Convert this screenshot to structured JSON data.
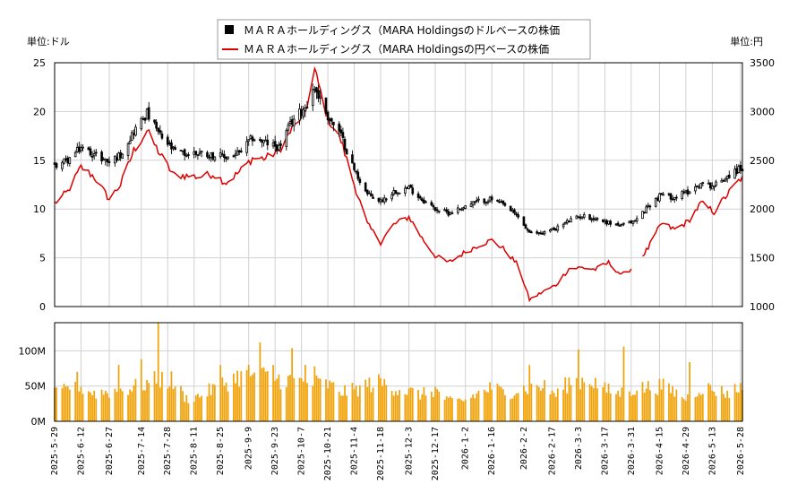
{
  "chart_data": {
    "type": "candlestick+line+bar",
    "title": "",
    "legend": {
      "placement": "top-center",
      "entries": [
        {
          "label": "ＭＡＲＡホールディングス（MARA Holdingsのドルベースの株価",
          "color": "#000000",
          "marker": "square"
        },
        {
          "label": "ＭＡＲＡホールディングス（MARA Holdingsの円ベースの株価",
          "color": "#dd0000",
          "marker": "line"
        }
      ]
    },
    "left_axis": {
      "title": "単位:ドル",
      "ylim": [
        0,
        25
      ],
      "ticks": [
        0,
        5,
        10,
        15,
        20,
        25
      ]
    },
    "right_axis": {
      "title": "単位:円",
      "ylim": [
        1000,
        3500
      ],
      "ticks": [
        1000,
        1500,
        2000,
        2500,
        3000,
        3500
      ]
    },
    "volume_axis": {
      "ylim": [
        0,
        140000000
      ],
      "ticks": [
        0,
        50000000,
        100000000
      ],
      "tick_labels": [
        "0M",
        "50M",
        "100M"
      ]
    },
    "x_axis": {
      "start": "2025-05-29",
      "end": "2026-05-29",
      "tick_labels": [
        "2025-5-29",
        "2025-6-12",
        "2025-6-27",
        "2025-7-14",
        "2025-7-28",
        "2025-8-11",
        "2025-8-25",
        "2025-9-9",
        "2025-9-23",
        "2025-10-7",
        "2025-10-21",
        "2025-11-4",
        "2025-11-18",
        "2025-12-3",
        "2025-12-17",
        "2026-1-2",
        "2026-1-16",
        "2026-2-2",
        "2026-2-17",
        "2026-3-3",
        "2026-3-17",
        "2026-3-31",
        "2026-4-15",
        "2026-4-29",
        "2026-5-13",
        "2026-5-28"
      ]
    },
    "grid": true,
    "colors": {
      "candle": "#000000",
      "yen_line": "#dd0000",
      "volume": "#f0a30a",
      "grid": "#d0d0d0"
    },
    "usd_price_series": [
      [
        "2025-05-29",
        14.5
      ],
      [
        "2025-06-05",
        15.0
      ],
      [
        "2025-06-12",
        16.3
      ],
      [
        "2025-06-19",
        15.6
      ],
      [
        "2025-06-27",
        14.8
      ],
      [
        "2025-07-03",
        15.6
      ],
      [
        "2025-07-10",
        18.0
      ],
      [
        "2025-07-17",
        19.8
      ],
      [
        "2025-07-24",
        17.5
      ],
      [
        "2025-07-31",
        16.0
      ],
      [
        "2025-08-07",
        15.6
      ],
      [
        "2025-08-14",
        15.8
      ],
      [
        "2025-08-21",
        15.5
      ],
      [
        "2025-08-28",
        15.3
      ],
      [
        "2025-09-04",
        15.7
      ],
      [
        "2025-09-11",
        17.3
      ],
      [
        "2025-09-18",
        16.8
      ],
      [
        "2025-09-25",
        16.3
      ],
      [
        "2025-10-02",
        19.0
      ],
      [
        "2025-10-09",
        20.5
      ],
      [
        "2025-10-14",
        22.5
      ],
      [
        "2025-10-21",
        19.5
      ],
      [
        "2025-10-28",
        17.5
      ],
      [
        "2025-11-04",
        14.0
      ],
      [
        "2025-11-11",
        11.5
      ],
      [
        "2025-11-18",
        10.8
      ],
      [
        "2025-11-25",
        11.8
      ],
      [
        "2025-12-03",
        12.2
      ],
      [
        "2025-12-10",
        11.0
      ],
      [
        "2025-12-17",
        10.0
      ],
      [
        "2025-12-24",
        9.6
      ],
      [
        "2026-01-02",
        10.3
      ],
      [
        "2026-01-09",
        10.8
      ],
      [
        "2026-01-16",
        11.0
      ],
      [
        "2026-01-23",
        10.3
      ],
      [
        "2026-01-30",
        9.2
      ],
      [
        "2026-02-05",
        7.5
      ],
      [
        "2026-02-12",
        7.6
      ],
      [
        "2026-02-19",
        8.0
      ],
      [
        "2026-02-26",
        8.8
      ],
      [
        "2026-03-05",
        9.3
      ],
      [
        "2026-03-12",
        9.0
      ],
      [
        "2026-03-19",
        8.6
      ],
      [
        "2026-03-26",
        8.3
      ],
      [
        "2026-04-02",
        8.8
      ],
      [
        "2026-04-09",
        10.3
      ],
      [
        "2026-04-16",
        11.5
      ],
      [
        "2026-04-23",
        11.2
      ],
      [
        "2026-04-30",
        11.8
      ],
      [
        "2026-05-07",
        12.6
      ],
      [
        "2026-05-14",
        12.4
      ],
      [
        "2026-05-21",
        13.4
      ],
      [
        "2026-05-28",
        14.2
      ]
    ],
    "jpy_price_series": [
      [
        "2025-05-29",
        2060
      ],
      [
        "2025-06-05",
        2180
      ],
      [
        "2025-06-12",
        2430
      ],
      [
        "2025-06-19",
        2330
      ],
      [
        "2025-06-27",
        2100
      ],
      [
        "2025-07-03",
        2250
      ],
      [
        "2025-07-10",
        2600
      ],
      [
        "2025-07-17",
        2800
      ],
      [
        "2025-07-24",
        2560
      ],
      [
        "2025-07-31",
        2350
      ],
      [
        "2025-08-07",
        2340
      ],
      [
        "2025-08-14",
        2330
      ],
      [
        "2025-08-21",
        2360
      ],
      [
        "2025-08-28",
        2270
      ],
      [
        "2025-09-04",
        2380
      ],
      [
        "2025-09-11",
        2520
      ],
      [
        "2025-09-18",
        2520
      ],
      [
        "2025-09-25",
        2600
      ],
      [
        "2025-10-02",
        2820
      ],
      [
        "2025-10-09",
        3000
      ],
      [
        "2025-10-14",
        3420
      ],
      [
        "2025-10-21",
        2930
      ],
      [
        "2025-10-28",
        2700
      ],
      [
        "2025-11-04",
        2250
      ],
      [
        "2025-11-11",
        1840
      ],
      [
        "2025-11-18",
        1660
      ],
      [
        "2025-11-25",
        1840
      ],
      [
        "2025-12-03",
        1920
      ],
      [
        "2025-12-10",
        1700
      ],
      [
        "2025-12-17",
        1520
      ],
      [
        "2025-12-24",
        1450
      ],
      [
        "2026-01-02",
        1560
      ],
      [
        "2026-01-09",
        1630
      ],
      [
        "2026-01-16",
        1680
      ],
      [
        "2026-01-23",
        1580
      ],
      [
        "2026-01-30",
        1420
      ],
      [
        "2026-02-05",
        1070
      ],
      [
        "2026-02-12",
        1150
      ],
      [
        "2026-02-19",
        1220
      ],
      [
        "2026-02-26",
        1390
      ],
      [
        "2026-03-05",
        1400
      ],
      [
        "2026-03-12",
        1380
      ],
      [
        "2026-03-19",
        1450
      ],
      [
        "2026-03-26",
        1320
      ],
      [
        "2026-04-02",
        1420
      ],
      [
        "2026-04-09",
        1600
      ],
      [
        "2026-04-16",
        1850
      ],
      [
        "2026-04-23",
        1790
      ],
      [
        "2026-04-30",
        1870
      ],
      [
        "2026-05-07",
        2060
      ],
      [
        "2026-05-14",
        1970
      ],
      [
        "2026-05-21",
        2150
      ],
      [
        "2026-05-28",
        2310
      ]
    ],
    "jpy_gaps": [
      [
        "2026-04-01",
        "2026-04-04"
      ]
    ],
    "volume_series": [
      [
        "2025-05-29",
        38000000
      ],
      [
        "2025-06-05",
        45000000
      ],
      [
        "2025-06-09",
        62000000
      ],
      [
        "2025-06-12",
        48000000
      ],
      [
        "2025-06-19",
        40000000
      ],
      [
        "2025-06-27",
        42000000
      ],
      [
        "2025-07-02",
        80000000
      ],
      [
        "2025-07-10",
        48000000
      ],
      [
        "2025-07-14",
        88000000
      ],
      [
        "2025-07-18",
        55000000
      ],
      [
        "2025-07-23",
        140000000
      ],
      [
        "2025-07-25",
        60000000
      ],
      [
        "2025-07-30",
        58000000
      ],
      [
        "2025-08-07",
        32000000
      ],
      [
        "2025-08-14",
        36000000
      ],
      [
        "2025-08-21",
        46000000
      ],
      [
        "2025-08-25",
        80000000
      ],
      [
        "2025-09-02",
        62000000
      ],
      [
        "2025-09-09",
        68000000
      ],
      [
        "2025-09-15",
        112000000
      ],
      [
        "2025-09-22",
        80000000
      ],
      [
        "2025-09-26",
        60000000
      ],
      [
        "2025-10-02",
        104000000
      ],
      [
        "2025-10-09",
        80000000
      ],
      [
        "2025-10-14",
        78000000
      ],
      [
        "2025-10-21",
        52000000
      ],
      [
        "2025-10-28",
        42000000
      ],
      [
        "2025-11-04",
        44000000
      ],
      [
        "2025-11-11",
        52000000
      ],
      [
        "2025-11-18",
        55000000
      ],
      [
        "2025-11-25",
        48000000
      ],
      [
        "2025-12-03",
        42000000
      ],
      [
        "2025-12-10",
        38000000
      ],
      [
        "2025-12-17",
        45000000
      ],
      [
        "2025-12-24",
        28000000
      ],
      [
        "2026-01-02",
        30000000
      ],
      [
        "2026-01-09",
        40000000
      ],
      [
        "2026-01-16",
        48000000
      ],
      [
        "2026-01-23",
        40000000
      ],
      [
        "2026-01-30",
        45000000
      ],
      [
        "2026-02-05",
        80000000
      ],
      [
        "2026-02-12",
        50000000
      ],
      [
        "2026-02-19",
        38000000
      ],
      [
        "2026-02-26",
        55000000
      ],
      [
        "2026-03-03",
        102000000
      ],
      [
        "2026-03-09",
        60000000
      ],
      [
        "2026-03-17",
        45000000
      ],
      [
        "2026-03-24",
        40000000
      ],
      [
        "2026-03-27",
        106000000
      ],
      [
        "2026-04-02",
        46000000
      ],
      [
        "2026-04-09",
        48000000
      ],
      [
        "2026-04-16",
        50000000
      ],
      [
        "2026-04-23",
        42000000
      ],
      [
        "2026-04-29",
        32000000
      ],
      [
        "2026-05-01",
        84000000
      ],
      [
        "2026-05-07",
        48000000
      ],
      [
        "2026-05-14",
        45000000
      ],
      [
        "2026-05-21",
        40000000
      ],
      [
        "2026-05-28",
        48000000
      ]
    ]
  }
}
